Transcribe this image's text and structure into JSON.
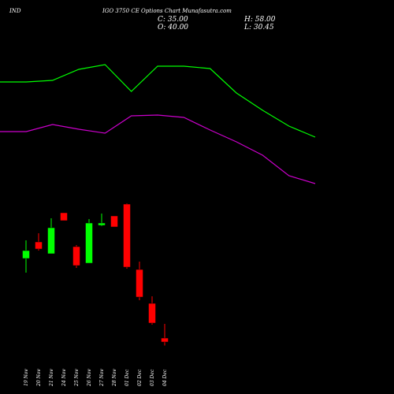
{
  "chart_data": [
    {
      "type": "candlestick",
      "title": [
        "IND",
        "IGO 3750  CE Options Chart Munafasutra.com"
      ],
      "annotations": [
        "C: 35.00",
        "O: 40.00",
        "H: 58.00",
        "L: 30.45"
      ],
      "categories": [
        "19 Nov",
        "20 Nov",
        "21 Nov",
        "24 Nov",
        "25 Nov",
        "26 Nov",
        "27 Nov",
        "28 Nov",
        "01 Dec",
        "02 Dec",
        "03 Dec",
        "04 Dec"
      ],
      "open": [
        141,
        162,
        147,
        199,
        156,
        135,
        183,
        195,
        210,
        127,
        84,
        40
      ],
      "high": [
        164,
        173,
        192,
        199,
        158,
        191,
        198,
        195,
        211,
        137,
        93,
        58
      ],
      "low": [
        123,
        151,
        147,
        189,
        129,
        135,
        182,
        181,
        128,
        88,
        57,
        30.45
      ],
      "close": [
        151,
        153,
        180,
        189,
        132,
        186,
        186,
        181,
        130,
        92,
        59,
        35
      ],
      "up_color": "#00ff00",
      "down_color": "#ff0000",
      "ylim": [
        -31,
        469
      ]
    },
    {
      "type": "line",
      "categories": [
        null,
        null,
        null,
        null,
        null,
        null,
        null,
        null,
        null,
        null,
        null,
        null,
        null
      ],
      "series": [
        {
          "color": "#00ff00",
          "values": [
            365,
            365,
            367,
            381,
            387,
            353,
            385,
            385,
            382,
            351,
            329,
            309,
            295
          ]
        },
        {
          "color": "#cc00cc",
          "values": [
            302,
            302,
            311,
            305,
            300,
            322,
            323,
            320,
            304,
            289,
            272,
            246,
            236
          ]
        }
      ],
      "ylim": [
        -31,
        469
      ]
    }
  ]
}
